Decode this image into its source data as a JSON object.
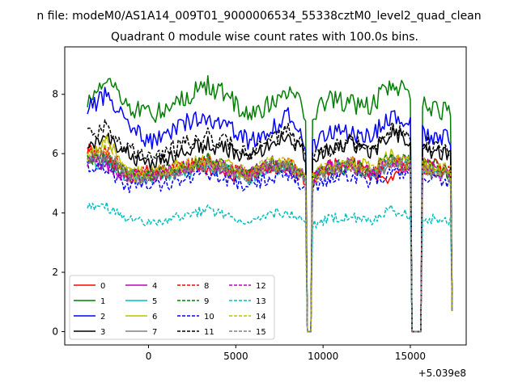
{
  "chart_data": {
    "type": "line",
    "suptitle": "n file: modeM0/AS1A14_009T01_9000006534_55338cztM0_level2_quad_clean",
    "title": "Quadrant 0 module wise count rates with 100.0s bins.",
    "xlabel": "",
    "ylabel": "",
    "x_offset_label": "+5.039e8",
    "xlim": [
      -4800,
      18200
    ],
    "ylim": [
      -0.45,
      9.6
    ],
    "x_ticks": [
      0,
      5000,
      10000,
      15000
    ],
    "x_tick_labels": [
      "0",
      "5000",
      "10000",
      "15000"
    ],
    "y_ticks": [
      0,
      2,
      4,
      6,
      8
    ],
    "y_tick_labels": [
      "0",
      "2",
      "4",
      "6",
      "8"
    ],
    "x_start": -3500,
    "x_end": 17400,
    "x_step": 100,
    "gaps": [
      [
        9050,
        9300
      ],
      [
        15050,
        15600
      ]
    ],
    "gap_level": 0.0,
    "legend_location": "lower left",
    "legend_columns": 4,
    "series": [
      {
        "name": "0",
        "color": "#ff0000",
        "dash": "solid",
        "level": 5.5,
        "shape": [
          6.2,
          5.8,
          5.2,
          5.4,
          5.3,
          5.6,
          5.5,
          5.3,
          5.2,
          5.6,
          5.4,
          5.1,
          5.6,
          5.7,
          5.3,
          5.2,
          5.6,
          5.7,
          5.2
        ]
      },
      {
        "name": "1",
        "color": "#008000",
        "dash": "solid",
        "level": 7.7,
        "shape": [
          7.8,
          8.6,
          7.6,
          7.3,
          7.5,
          8.0,
          8.3,
          7.9,
          7.2,
          7.7,
          8.1,
          7.2,
          7.9,
          7.7,
          7.6,
          8.4,
          8.0,
          7.6,
          7.3
        ]
      },
      {
        "name": "2",
        "color": "#0000ff",
        "dash": "solid",
        "level": 6.8,
        "shape": [
          7.5,
          8.0,
          7.0,
          6.4,
          6.6,
          7.1,
          7.2,
          6.9,
          6.4,
          6.8,
          7.3,
          6.1,
          6.8,
          6.7,
          6.6,
          7.3,
          7.0,
          6.6,
          6.5
        ]
      },
      {
        "name": "3",
        "color": "#000000",
        "dash": "solid",
        "level": 6.1,
        "shape": [
          6.3,
          6.5,
          6.0,
          5.6,
          5.8,
          6.2,
          6.3,
          6.1,
          5.8,
          6.3,
          6.6,
          5.7,
          6.2,
          6.4,
          6.0,
          6.7,
          6.4,
          6.1,
          5.9
        ]
      },
      {
        "name": "4",
        "color": "#bf00bf",
        "dash": "solid",
        "level": 5.6,
        "shape": [
          5.9,
          5.6,
          5.3,
          5.3,
          5.4,
          5.6,
          5.7,
          5.5,
          5.3,
          5.7,
          5.6,
          5.2,
          5.6,
          5.7,
          5.4,
          5.8,
          5.7,
          5.6,
          5.3
        ]
      },
      {
        "name": "5",
        "color": "#00bfbf",
        "dash": "solid",
        "level": 5.5,
        "shape": [
          5.7,
          5.7,
          5.2,
          5.2,
          5.3,
          5.4,
          5.6,
          5.4,
          5.2,
          5.5,
          5.5,
          5.1,
          5.5,
          5.6,
          5.3,
          5.8,
          5.6,
          5.5,
          5.2
        ]
      },
      {
        "name": "6",
        "color": "#bfbf00",
        "dash": "solid",
        "level": 5.7,
        "shape": [
          5.9,
          6.4,
          5.4,
          5.4,
          5.5,
          5.7,
          5.8,
          5.6,
          5.3,
          5.7,
          5.8,
          5.3,
          5.6,
          5.8,
          5.5,
          5.9,
          5.8,
          5.6,
          5.4
        ]
      },
      {
        "name": "7",
        "color": "#808080",
        "dash": "solid",
        "level": 5.5,
        "shape": [
          5.8,
          5.9,
          5.2,
          5.2,
          5.3,
          5.5,
          5.7,
          5.4,
          5.2,
          5.6,
          5.5,
          5.1,
          5.4,
          5.6,
          5.3,
          5.7,
          5.6,
          5.4,
          5.2
        ]
      },
      {
        "name": "8",
        "color": "#ff0000",
        "dash": "dashed",
        "level": 5.6,
        "shape": [
          6.1,
          6.0,
          5.3,
          5.3,
          5.4,
          5.6,
          5.7,
          5.5,
          5.3,
          5.6,
          5.6,
          5.2,
          5.5,
          5.6,
          5.4,
          5.8,
          5.6,
          5.5,
          5.3
        ]
      },
      {
        "name": "9",
        "color": "#008000",
        "dash": "dashed",
        "level": 5.6,
        "shape": [
          5.8,
          5.8,
          5.3,
          5.3,
          5.4,
          5.6,
          5.8,
          5.5,
          5.3,
          5.7,
          5.6,
          5.2,
          5.5,
          5.7,
          5.4,
          5.9,
          5.7,
          5.6,
          5.3
        ]
      },
      {
        "name": "10",
        "color": "#0000ff",
        "dash": "dashed",
        "level": 5.2,
        "shape": [
          5.6,
          5.4,
          4.9,
          4.9,
          5.0,
          5.2,
          5.3,
          5.1,
          4.9,
          5.2,
          5.2,
          4.8,
          5.2,
          5.3,
          5.0,
          5.4,
          5.2,
          5.1,
          4.9
        ]
      },
      {
        "name": "11",
        "color": "#000000",
        "dash": "dashed",
        "level": 6.3,
        "shape": [
          6.6,
          6.9,
          6.1,
          5.9,
          6.1,
          6.4,
          6.6,
          6.3,
          6.0,
          6.5,
          6.8,
          5.8,
          6.2,
          6.5,
          6.1,
          6.8,
          6.6,
          6.3,
          6.0
        ]
      },
      {
        "name": "12",
        "color": "#bf00bf",
        "dash": "dashed",
        "level": 5.5,
        "shape": [
          5.8,
          5.6,
          5.2,
          5.2,
          5.3,
          5.5,
          5.6,
          5.4,
          5.2,
          5.6,
          5.5,
          5.1,
          5.5,
          5.6,
          5.3,
          5.7,
          5.5,
          5.4,
          5.2
        ]
      },
      {
        "name": "13",
        "color": "#00bfbf",
        "dash": "dashed",
        "level": 3.9,
        "shape": [
          4.3,
          4.2,
          3.8,
          3.7,
          3.8,
          4.0,
          4.1,
          3.9,
          3.7,
          4.0,
          4.0,
          3.6,
          3.8,
          3.9,
          3.7,
          4.1,
          3.9,
          3.8,
          3.7
        ]
      },
      {
        "name": "14",
        "color": "#bfbf00",
        "dash": "dashed",
        "level": 5.6,
        "shape": [
          5.9,
          6.2,
          5.3,
          5.3,
          5.4,
          5.6,
          5.7,
          5.5,
          5.3,
          5.7,
          5.6,
          5.2,
          5.5,
          5.7,
          5.4,
          5.8,
          5.7,
          5.5,
          5.3
        ]
      },
      {
        "name": "15",
        "color": "#808080",
        "dash": "dashed",
        "level": 5.5,
        "shape": [
          5.8,
          5.9,
          5.2,
          5.2,
          5.3,
          5.5,
          5.6,
          5.4,
          5.2,
          5.6,
          5.5,
          5.1,
          5.4,
          5.6,
          5.3,
          5.7,
          5.5,
          5.4,
          5.2
        ]
      }
    ]
  }
}
